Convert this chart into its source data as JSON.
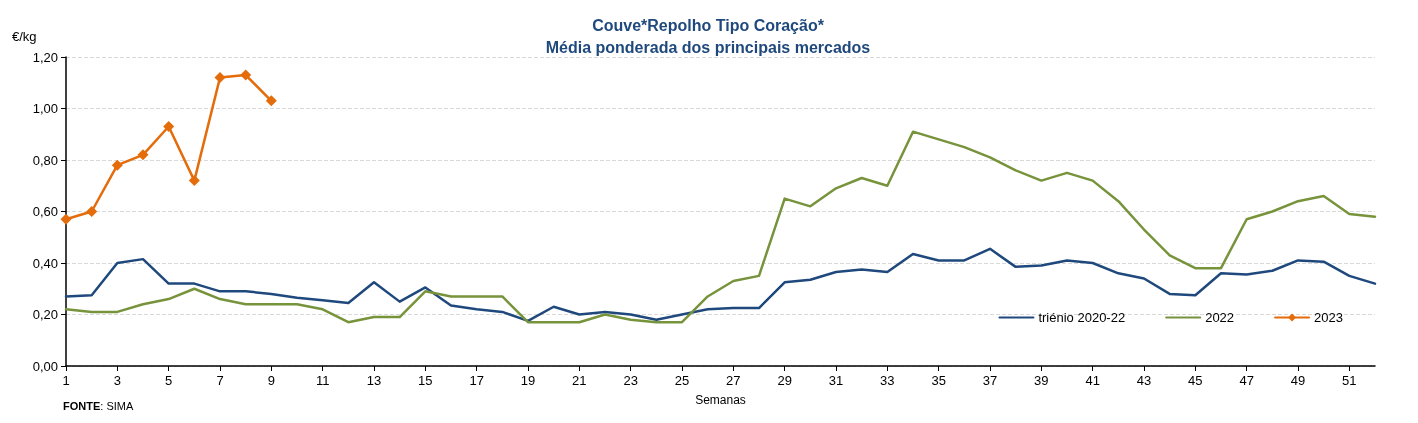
{
  "chart_data": {
    "type": "line",
    "title": "Couve*Repolho Tipo Coração*",
    "subtitle": "Média ponderada dos principais mercados",
    "ylabel": "€/kg",
    "xlabel": "Semanas",
    "annotations": [
      "FONTE: SIMA"
    ],
    "x": [
      1,
      2,
      3,
      4,
      5,
      6,
      7,
      8,
      9,
      10,
      11,
      12,
      13,
      14,
      15,
      16,
      17,
      18,
      19,
      20,
      21,
      22,
      23,
      24,
      25,
      26,
      27,
      28,
      29,
      30,
      31,
      32,
      33,
      34,
      35,
      36,
      37,
      38,
      39,
      40,
      41,
      42,
      43,
      44,
      45,
      46,
      47,
      48,
      49,
      50,
      51,
      52
    ],
    "xlim": [
      1,
      52
    ],
    "xticks": [
      1,
      3,
      5,
      7,
      9,
      11,
      13,
      15,
      17,
      19,
      21,
      23,
      25,
      27,
      29,
      31,
      33,
      35,
      37,
      39,
      41,
      43,
      45,
      47,
      49,
      51
    ],
    "series": [
      {
        "name": "triénio 2020-22",
        "color": "#1f497d",
        "marker": "none",
        "values": [
          0.27,
          0.275,
          0.4,
          0.415,
          0.32,
          0.32,
          0.29,
          0.29,
          0.28,
          0.265,
          0.255,
          0.245,
          0.325,
          0.25,
          0.305,
          0.235,
          0.22,
          0.21,
          0.175,
          0.23,
          0.2,
          0.21,
          0.2,
          0.18,
          0.2,
          0.22,
          0.225,
          0.225,
          0.325,
          0.335,
          0.365,
          0.375,
          0.365,
          0.435,
          0.41,
          0.41,
          0.455,
          0.385,
          0.39,
          0.41,
          0.4,
          0.36,
          0.34,
          0.28,
          0.275,
          0.36,
          0.355,
          0.37,
          0.41,
          0.405,
          0.35,
          0.32
        ]
      },
      {
        "name": "2022",
        "color": "#77933c",
        "marker": "none",
        "values": [
          0.22,
          0.21,
          0.21,
          0.24,
          0.26,
          0.3,
          0.26,
          0.24,
          0.24,
          0.24,
          0.22,
          0.17,
          0.19,
          0.19,
          0.29,
          0.27,
          0.27,
          0.27,
          0.17,
          0.17,
          0.17,
          0.2,
          0.18,
          0.17,
          0.17,
          0.27,
          0.33,
          0.35,
          0.65,
          0.62,
          0.69,
          0.73,
          0.7,
          0.91,
          0.88,
          0.85,
          0.81,
          0.76,
          0.72,
          0.75,
          0.72,
          0.64,
          0.53,
          0.43,
          0.38,
          0.38,
          0.57,
          0.6,
          0.64,
          0.66,
          0.59,
          0.58
        ]
      },
      {
        "name": "2023",
        "color": "#e46c0a",
        "marker": "diamond",
        "values": [
          0.57,
          0.6,
          0.78,
          0.82,
          0.93,
          0.72,
          1.12,
          1.13,
          1.03,
          null,
          null,
          null,
          null,
          null,
          null,
          null,
          null,
          null,
          null,
          null,
          null,
          null,
          null,
          null,
          null,
          null,
          null,
          null,
          null,
          null,
          null,
          null,
          null,
          null,
          null,
          null,
          null,
          null,
          null,
          null,
          null,
          null,
          null,
          null,
          null,
          null,
          null,
          null,
          null,
          null,
          null,
          null
        ]
      }
    ],
    "ylim": [
      0,
      1.2
    ],
    "yticks": [
      {
        "value": 0,
        "label": "0,00"
      },
      {
        "value": 0.2,
        "label": "0,20"
      },
      {
        "value": 0.4,
        "label": "0,40"
      },
      {
        "value": 0.6,
        "label": "0,60"
      },
      {
        "value": 0.8,
        "label": "0,80"
      },
      {
        "value": 1.0,
        "label": "1,00"
      },
      {
        "value": 1.2,
        "label": "1,20"
      }
    ],
    "grid": "y",
    "legend": "bottom right",
    "line_style": "solid"
  }
}
